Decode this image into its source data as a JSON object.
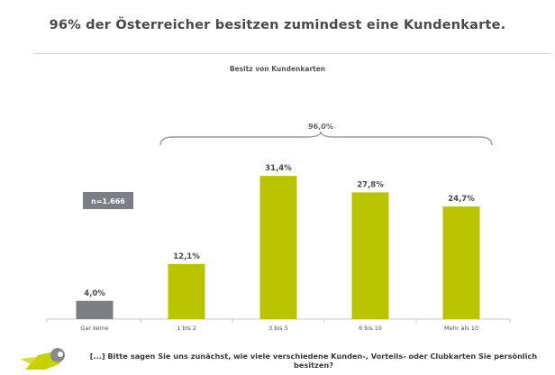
{
  "header": {
    "title": "96% der Österreicher besitzen zumindest eine Kundenkarte."
  },
  "chart_data": {
    "type": "bar",
    "title": "Besitz von Kundenkarten",
    "categories": [
      "Gar keine",
      "1 bis 2",
      "3 bis 5",
      "6 bis 10",
      "Mehr als 10"
    ],
    "values": [
      4.0,
      12.1,
      31.4,
      27.8,
      24.7
    ],
    "value_labels": [
      "4,0%",
      "12,1%",
      "31,4%",
      "27,8%",
      "24,7%"
    ],
    "ylim": [
      0,
      35
    ],
    "xlabel": "",
    "ylabel": "",
    "grid": false,
    "bar_colors": [
      "#7a7f85",
      "#b8c400",
      "#b8c400",
      "#b8c400",
      "#b8c400"
    ],
    "annotations": {
      "bracket_label": "96,0%",
      "sample_size": "n=1.666"
    }
  },
  "footer": {
    "question": "[...] Bitte sagen Sie uns zunächst, wie viele verschiedene Kunden-, Vorteils-  oder Clubkarten Sie persönlich besitzen?"
  },
  "colors": {
    "accent_bar": "#b8c400",
    "neutral_bar": "#7a7f85",
    "badge_bg": "#7a7f85"
  }
}
